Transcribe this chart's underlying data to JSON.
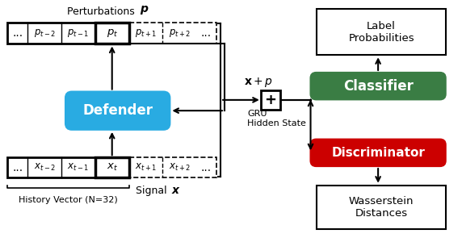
{
  "bg_color": "#ffffff",
  "history_label": "History Vector (N=32)",
  "gru_label": "GRU\nHidden State",
  "defender_label": "Defender",
  "classifier_label": "Classifier",
  "discriminator_label": "Discriminator",
  "label_prob_label": "Label\nProbabilities",
  "wasserstein_label": "Wasserstein\nDistances",
  "defender_color": "#29ABE2",
  "classifier_color": "#3A7D44",
  "discriminator_color": "#CC0000"
}
